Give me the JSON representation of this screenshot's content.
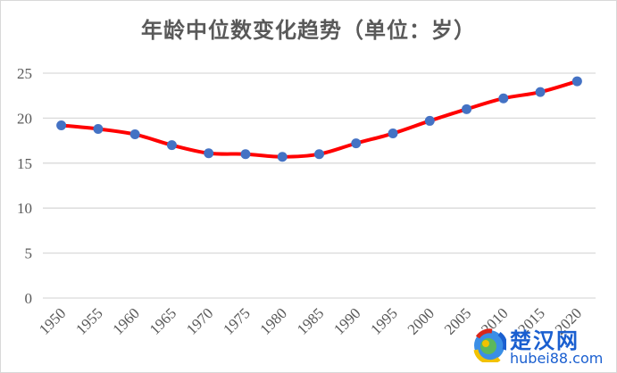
{
  "chart_data": {
    "type": "line",
    "title": "年龄中位数变化趋势（单位：岁）",
    "xlabel": "",
    "ylabel": "",
    "categories": [
      "1950",
      "1955",
      "1960",
      "1965",
      "1970",
      "1975",
      "1980",
      "1985",
      "1990",
      "1995",
      "2000",
      "2005",
      "2010",
      "2015",
      "2020"
    ],
    "series": [
      {
        "name": "年龄中位数",
        "values": [
          19.2,
          18.8,
          18.2,
          17.0,
          16.1,
          16.0,
          15.7,
          16.0,
          17.2,
          18.3,
          19.7,
          21.0,
          22.2,
          22.9,
          24.1
        ],
        "line_color": "#ff0000",
        "marker_color": "#4472c4",
        "smooth": true
      }
    ],
    "ylim": [
      0,
      25
    ],
    "yticks": [
      0,
      5,
      10,
      15,
      20,
      25
    ],
    "grid": true,
    "legend": "none",
    "xtick_rotation": -45
  },
  "watermark": {
    "cn": "楚汉网",
    "en": "hubei88.com"
  }
}
